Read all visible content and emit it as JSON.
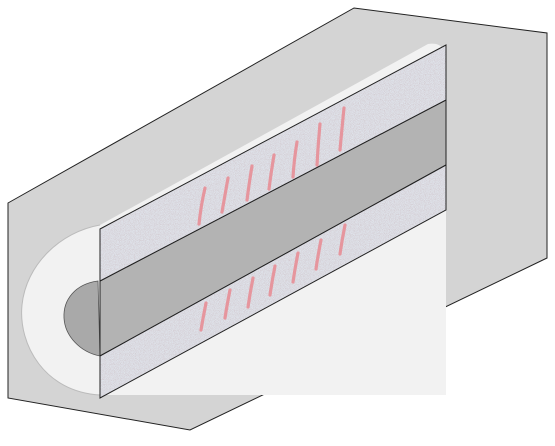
{
  "colors": {
    "background": "#ffffff",
    "housing": "#d4d4d4",
    "housing_shadow": "#c9c9c9",
    "insulation": "#f2f2f2",
    "bore": "#a9a9a9",
    "cavity": "#b3b3b3",
    "strip": "#dfe3ea",
    "strip_speckle": "#b79aa0",
    "marks": "#e88a92",
    "outline": "#222222"
  },
  "icons": {
    "housing": "cutaway-block-shape",
    "insulation": "insulation-sleeve-shape",
    "strips": "sectioned-strip-shape",
    "marks": "stripe-marks-shape"
  }
}
